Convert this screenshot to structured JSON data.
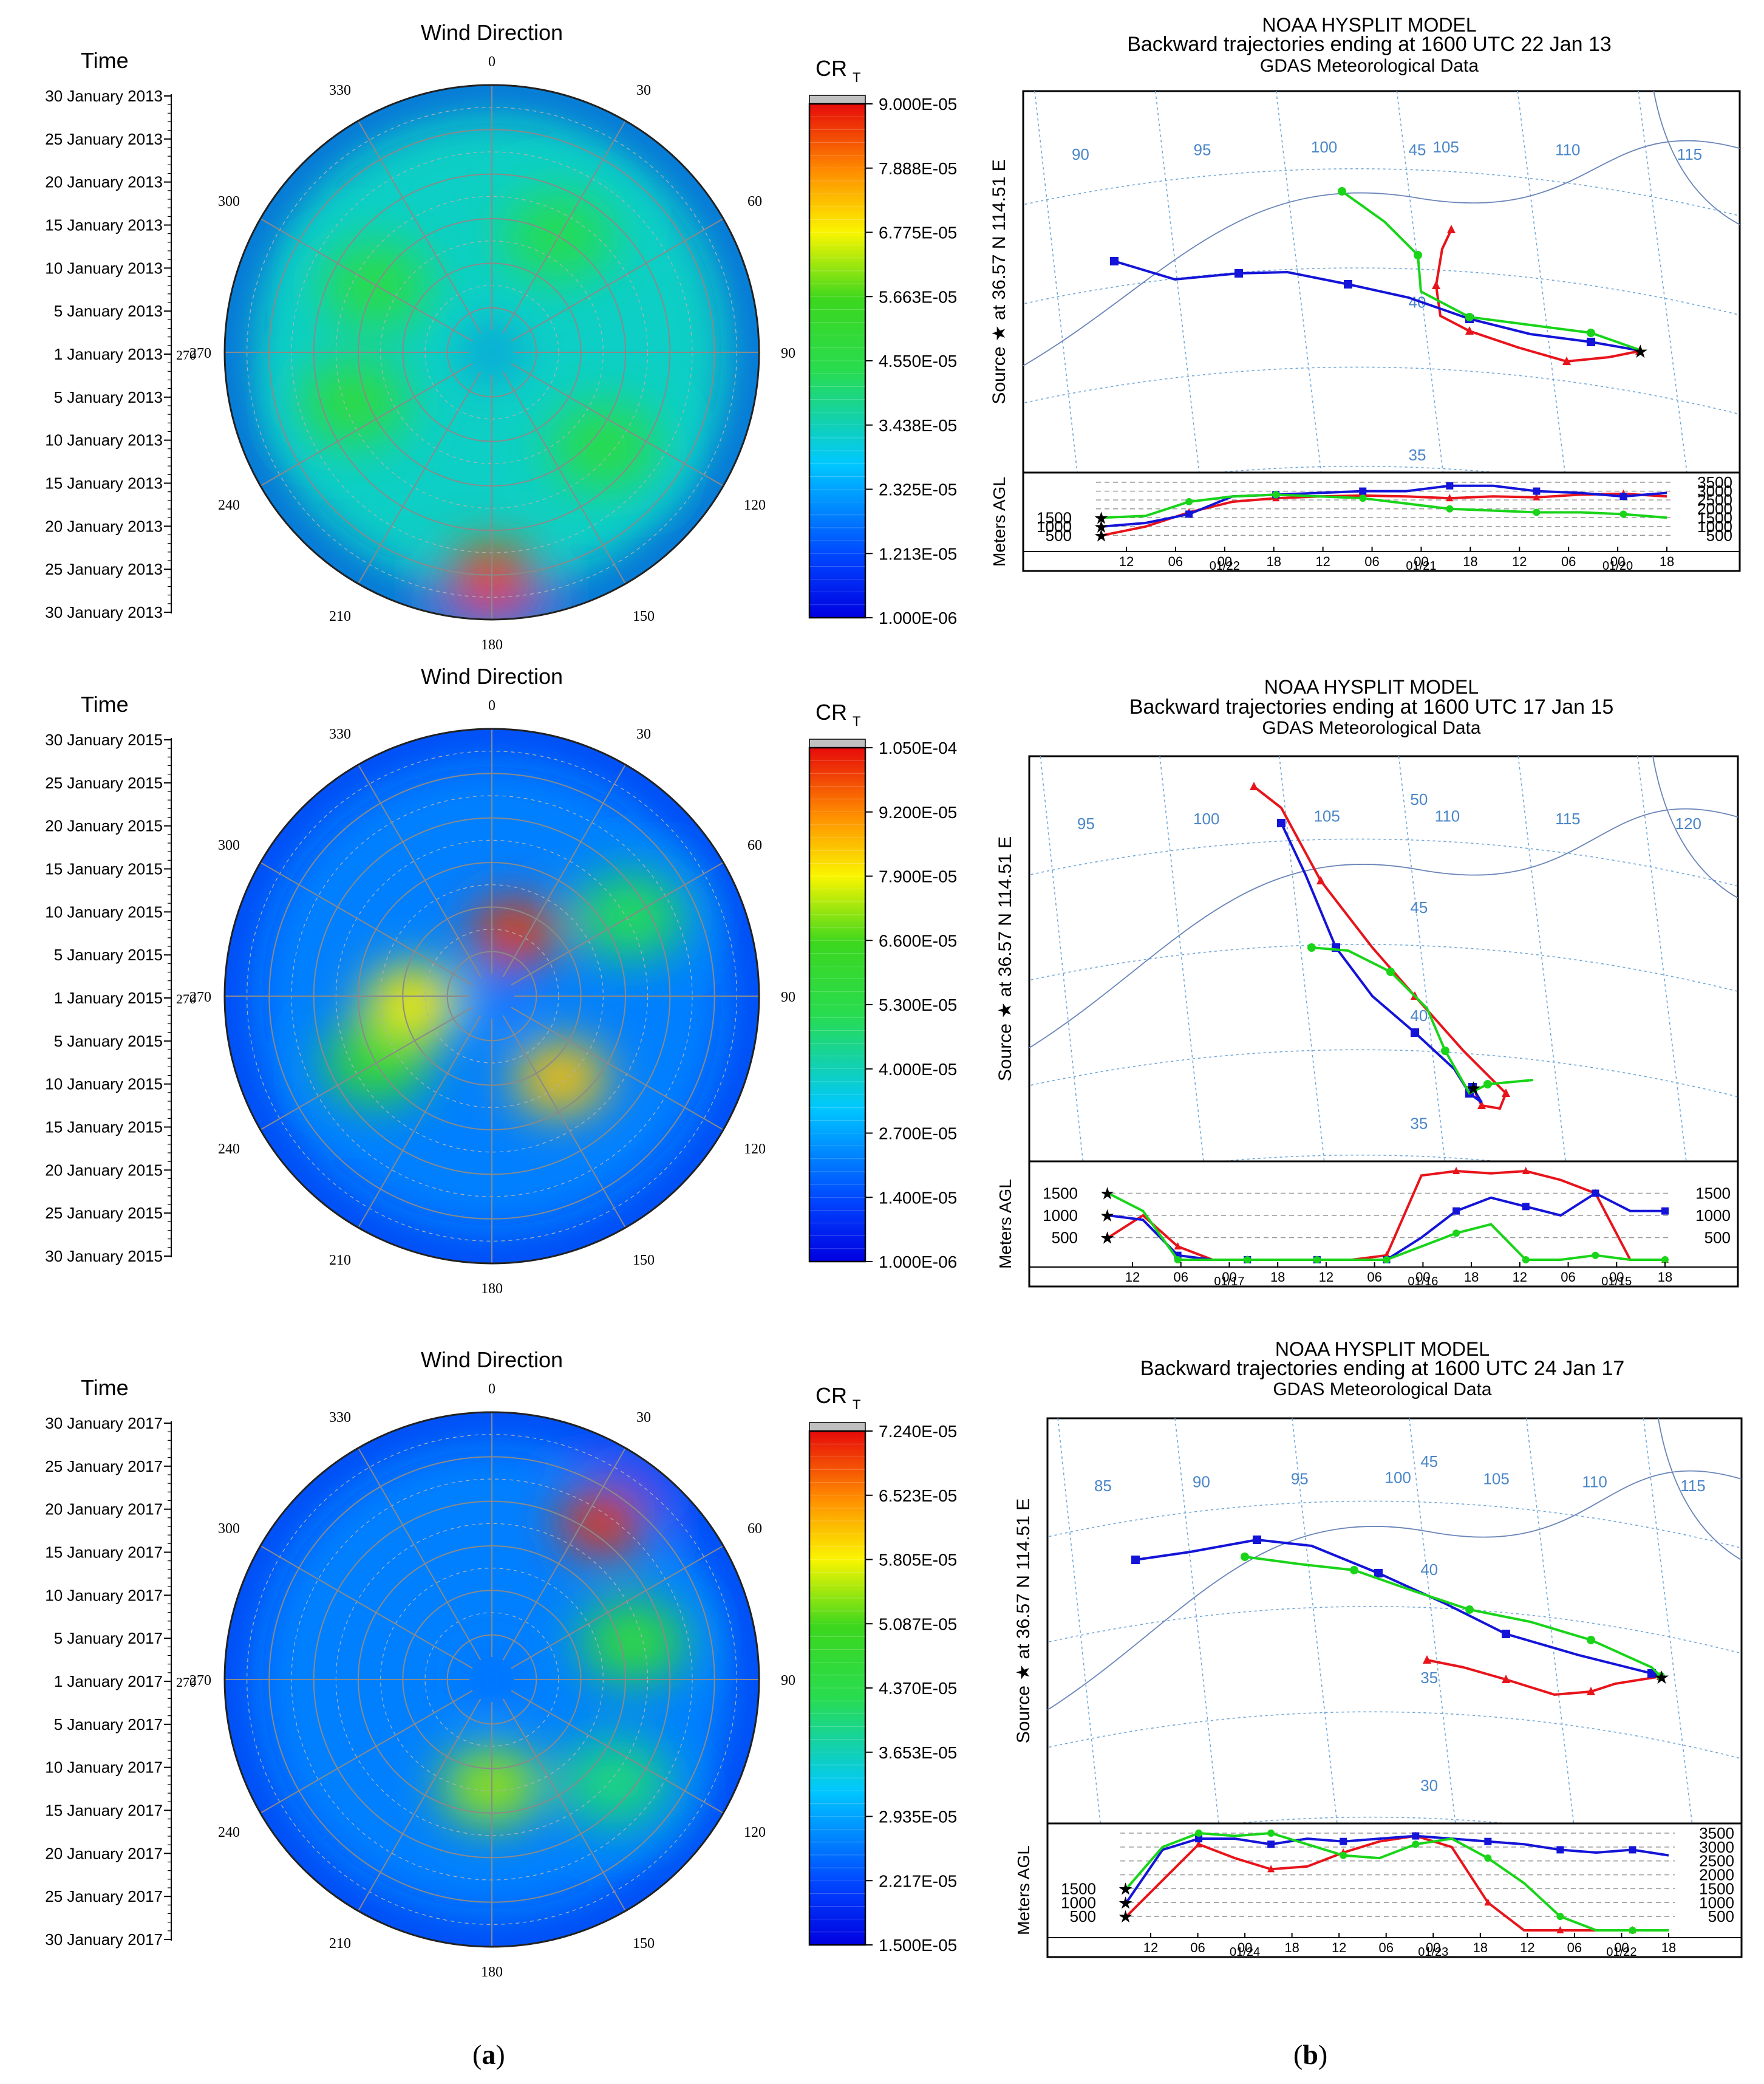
{
  "figure": {
    "caption_a": "a",
    "caption_b": "b"
  },
  "polar_labels": {
    "wind_title": "Wind Direction",
    "time_title": "Time",
    "cr_title": "CR",
    "cr_sub": "T",
    "angles": [
      "0",
      "30",
      "60",
      "90",
      "120",
      "150",
      "180",
      "210",
      "240",
      "270",
      "300",
      "330"
    ]
  },
  "hysplit_labels": {
    "line1": "NOAA HYSPLIT MODEL",
    "line3": "GDAS Meteorological Data",
    "source_label": "Source ★  at  36.57 N  114.51 E",
    "meters_label": "Meters AGL"
  },
  "chart_data": [
    {
      "type": "heatmap",
      "projection": "polar",
      "year": "2013",
      "title": "Wind Direction",
      "time_ticks": [
        "30 January 2013",
        "25 January 2013",
        "20 January 2013",
        "15 January 2013",
        "10 January 2013",
        "5 January 2013",
        "1 January 2013",
        "5 January 2013",
        "10 January 2013",
        "15 January 2013",
        "20 January 2013",
        "25 January 2013",
        "30 January 2013"
      ],
      "colorbar_label": "CR_T",
      "colorbar_ticks": [
        "9.000E-05",
        "7.888E-05",
        "6.775E-05",
        "5.663E-05",
        "4.550E-05",
        "3.438E-05",
        "2.325E-05",
        "1.213E-05",
        "1.000E-06"
      ],
      "colorbar_range": [
        1e-06,
        9e-05
      ],
      "hotspots": [
        {
          "dir_deg": 180,
          "radial_frac": 0.85,
          "value": 8.5e-05
        },
        {
          "dir_deg": 250,
          "radial_frac": 0.55,
          "value": 4.8e-05
        },
        {
          "dir_deg": 130,
          "radial_frac": 0.55,
          "value": 4.6e-05
        },
        {
          "dir_deg": 300,
          "radial_frac": 0.5,
          "value": 4.6e-05
        },
        {
          "dir_deg": 30,
          "radial_frac": 0.5,
          "value": 4.4e-05
        }
      ]
    },
    {
      "type": "heatmap",
      "projection": "polar",
      "year": "2015",
      "title": "Wind Direction",
      "time_ticks": [
        "30 January 2015",
        "25 January 2015",
        "20 January 2015",
        "15 January 2015",
        "10 January 2015",
        "5 January 2015",
        "1 January 2015",
        "5 January 2015",
        "10 January 2015",
        "15 January 2015",
        "20 January 2015",
        "25 January 2015",
        "30 January 2015"
      ],
      "colorbar_label": "CR_T",
      "colorbar_ticks": [
        "1.050E-04",
        "9.200E-05",
        "7.900E-05",
        "6.600E-05",
        "5.300E-05",
        "4.000E-05",
        "2.700E-05",
        "1.400E-05",
        "1.000E-06"
      ],
      "colorbar_range": [
        1e-06,
        0.000105
      ],
      "hotspots": [
        {
          "dir_deg": 20,
          "radial_frac": 0.25,
          "value": 0.0001
        },
        {
          "dir_deg": 140,
          "radial_frac": 0.4,
          "value": 8.5e-05
        },
        {
          "dir_deg": 265,
          "radial_frac": 0.3,
          "value": 8e-05
        },
        {
          "dir_deg": 240,
          "radial_frac": 0.5,
          "value": 6e-05
        },
        {
          "dir_deg": 60,
          "radial_frac": 0.6,
          "value": 5e-05
        }
      ]
    },
    {
      "type": "heatmap",
      "projection": "polar",
      "year": "2017",
      "title": "Wind Direction",
      "time_ticks": [
        "30 January 2017",
        "25 January 2017",
        "20 January 2017",
        "15 January 2017",
        "10 January 2017",
        "5 January 2017",
        "1 January 2017",
        "5 January 2017",
        "10 January 2017",
        "15 January 2017",
        "20 January 2017",
        "25 January 2017",
        "30 January 2017"
      ],
      "colorbar_label": "CR_T",
      "colorbar_ticks": [
        "7.240E-05",
        "6.523E-05",
        "5.805E-05",
        "5.087E-05",
        "4.370E-05",
        "3.653E-05",
        "2.935E-05",
        "2.217E-05",
        "1.500E-05"
      ],
      "colorbar_range": [
        1.5e-05,
        7.24e-05
      ],
      "hotspots": [
        {
          "dir_deg": 35,
          "radial_frac": 0.72,
          "value": 7e-05
        },
        {
          "dir_deg": 180,
          "radial_frac": 0.4,
          "value": 5.4e-05
        },
        {
          "dir_deg": 75,
          "radial_frac": 0.55,
          "value": 4.6e-05
        },
        {
          "dir_deg": 130,
          "radial_frac": 0.6,
          "value": 4e-05
        }
      ]
    },
    {
      "type": "line",
      "model": "HYSPLIT",
      "title": "Backward trajectories ending at 1600 UTC 22 Jan 13",
      "map_lon_labels": [
        "90",
        "95",
        "100",
        "105",
        "110",
        "115"
      ],
      "map_lat_labels": [
        "45",
        "40",
        "35"
      ],
      "height_ticks": [
        "3500",
        "3000",
        "2500",
        "2000",
        "1500",
        "1000",
        "500"
      ],
      "height_ticks_left": [
        "1500",
        "1000",
        "500"
      ],
      "time_ticks": [
        "12",
        "06",
        "00",
        "18",
        "12",
        "06",
        "00",
        "18",
        "12",
        "06",
        "00",
        "18"
      ],
      "date_ticks": [
        "01/22",
        "01/21",
        "01/20"
      ],
      "ylim": [
        0,
        3500
      ],
      "series": [
        {
          "name": "500 m start",
          "color": "#e8141b",
          "heights": [
            500,
            1000,
            1800,
            2400,
            2600,
            2700,
            2750,
            2700,
            2600,
            2700,
            2650,
            2800,
            2850,
            2700
          ]
        },
        {
          "name": "1000 m start",
          "color": "#1414d8",
          "heights": [
            1000,
            1200,
            1700,
            2700,
            2800,
            2900,
            3000,
            3000,
            3300,
            3300,
            3000,
            2900,
            2700,
            2900
          ]
        },
        {
          "name": "1500 m start",
          "color": "#19d419",
          "heights": [
            1500,
            1600,
            2400,
            2700,
            2800,
            2700,
            2600,
            2300,
            2000,
            1900,
            1800,
            1800,
            1700,
            1500
          ]
        }
      ]
    },
    {
      "type": "line",
      "model": "HYSPLIT",
      "title": "Backward trajectories ending at 1600 UTC 17 Jan 15",
      "map_lon_labels": [
        "95",
        "100",
        "105",
        "110",
        "115",
        "120"
      ],
      "map_lat_labels": [
        "50",
        "45",
        "40",
        "35"
      ],
      "height_ticks": [
        "1500",
        "1000",
        "500"
      ],
      "height_ticks_left": [
        "1500",
        "1000",
        "500"
      ],
      "time_ticks": [
        "12",
        "06",
        "00",
        "18",
        "12",
        "06",
        "00",
        "18",
        "12",
        "06",
        "00",
        "18"
      ],
      "date_ticks": [
        "01/17",
        "01/16",
        "01/15"
      ],
      "ylim": [
        0,
        2000
      ],
      "series": [
        {
          "name": "500 m start",
          "color": "#e8141b",
          "heights": [
            500,
            1000,
            300,
            0,
            0,
            0,
            0,
            0,
            100,
            1900,
            2000,
            1950,
            2000,
            1800,
            1500,
            0,
            0
          ]
        },
        {
          "name": "1000 m start",
          "color": "#1414d8",
          "heights": [
            1000,
            900,
            100,
            0,
            0,
            0,
            0,
            0,
            0,
            500,
            1100,
            1400,
            1200,
            1000,
            1500,
            1100,
            1100
          ]
        },
        {
          "name": "1500 m start",
          "color": "#19d419",
          "heights": [
            1500,
            1100,
            0,
            0,
            0,
            0,
            0,
            0,
            0,
            300,
            600,
            800,
            0,
            0,
            100,
            0,
            0
          ]
        }
      ]
    },
    {
      "type": "line",
      "model": "HYSPLIT",
      "title": "Backward trajectories ending at 1600 UTC 24 Jan 17",
      "map_lon_labels": [
        "85",
        "90",
        "95",
        "100",
        "105",
        "110",
        "115"
      ],
      "map_lat_labels": [
        "45",
        "40",
        "35",
        "30"
      ],
      "height_ticks": [
        "3500",
        "3000",
        "2500",
        "2000",
        "1500",
        "1000",
        "500"
      ],
      "height_ticks_left": [
        "1500",
        "1000",
        "500"
      ],
      "time_ticks": [
        "12",
        "06",
        "00",
        "18",
        "12",
        "06",
        "00",
        "18",
        "12",
        "06",
        "00",
        "18"
      ],
      "date_ticks": [
        "01/24",
        "01/23",
        "01/22"
      ],
      "ylim": [
        0,
        3500
      ],
      "series": [
        {
          "name": "500 m start",
          "color": "#e8141b",
          "heights": [
            500,
            1800,
            3100,
            2600,
            2200,
            2300,
            2800,
            3200,
            3400,
            3000,
            1000,
            0,
            0,
            0,
            0,
            0
          ]
        },
        {
          "name": "1000 m start",
          "color": "#1414d8",
          "heights": [
            1000,
            2900,
            3300,
            3300,
            3100,
            3300,
            3200,
            3300,
            3400,
            3300,
            3200,
            3100,
            2900,
            2800,
            2900,
            2700
          ]
        },
        {
          "name": "1500 m start",
          "color": "#19d419",
          "heights": [
            1500,
            3000,
            3500,
            3400,
            3500,
            3100,
            2700,
            2600,
            3100,
            3300,
            2600,
            1700,
            500,
            0,
            0,
            0
          ]
        }
      ]
    }
  ]
}
